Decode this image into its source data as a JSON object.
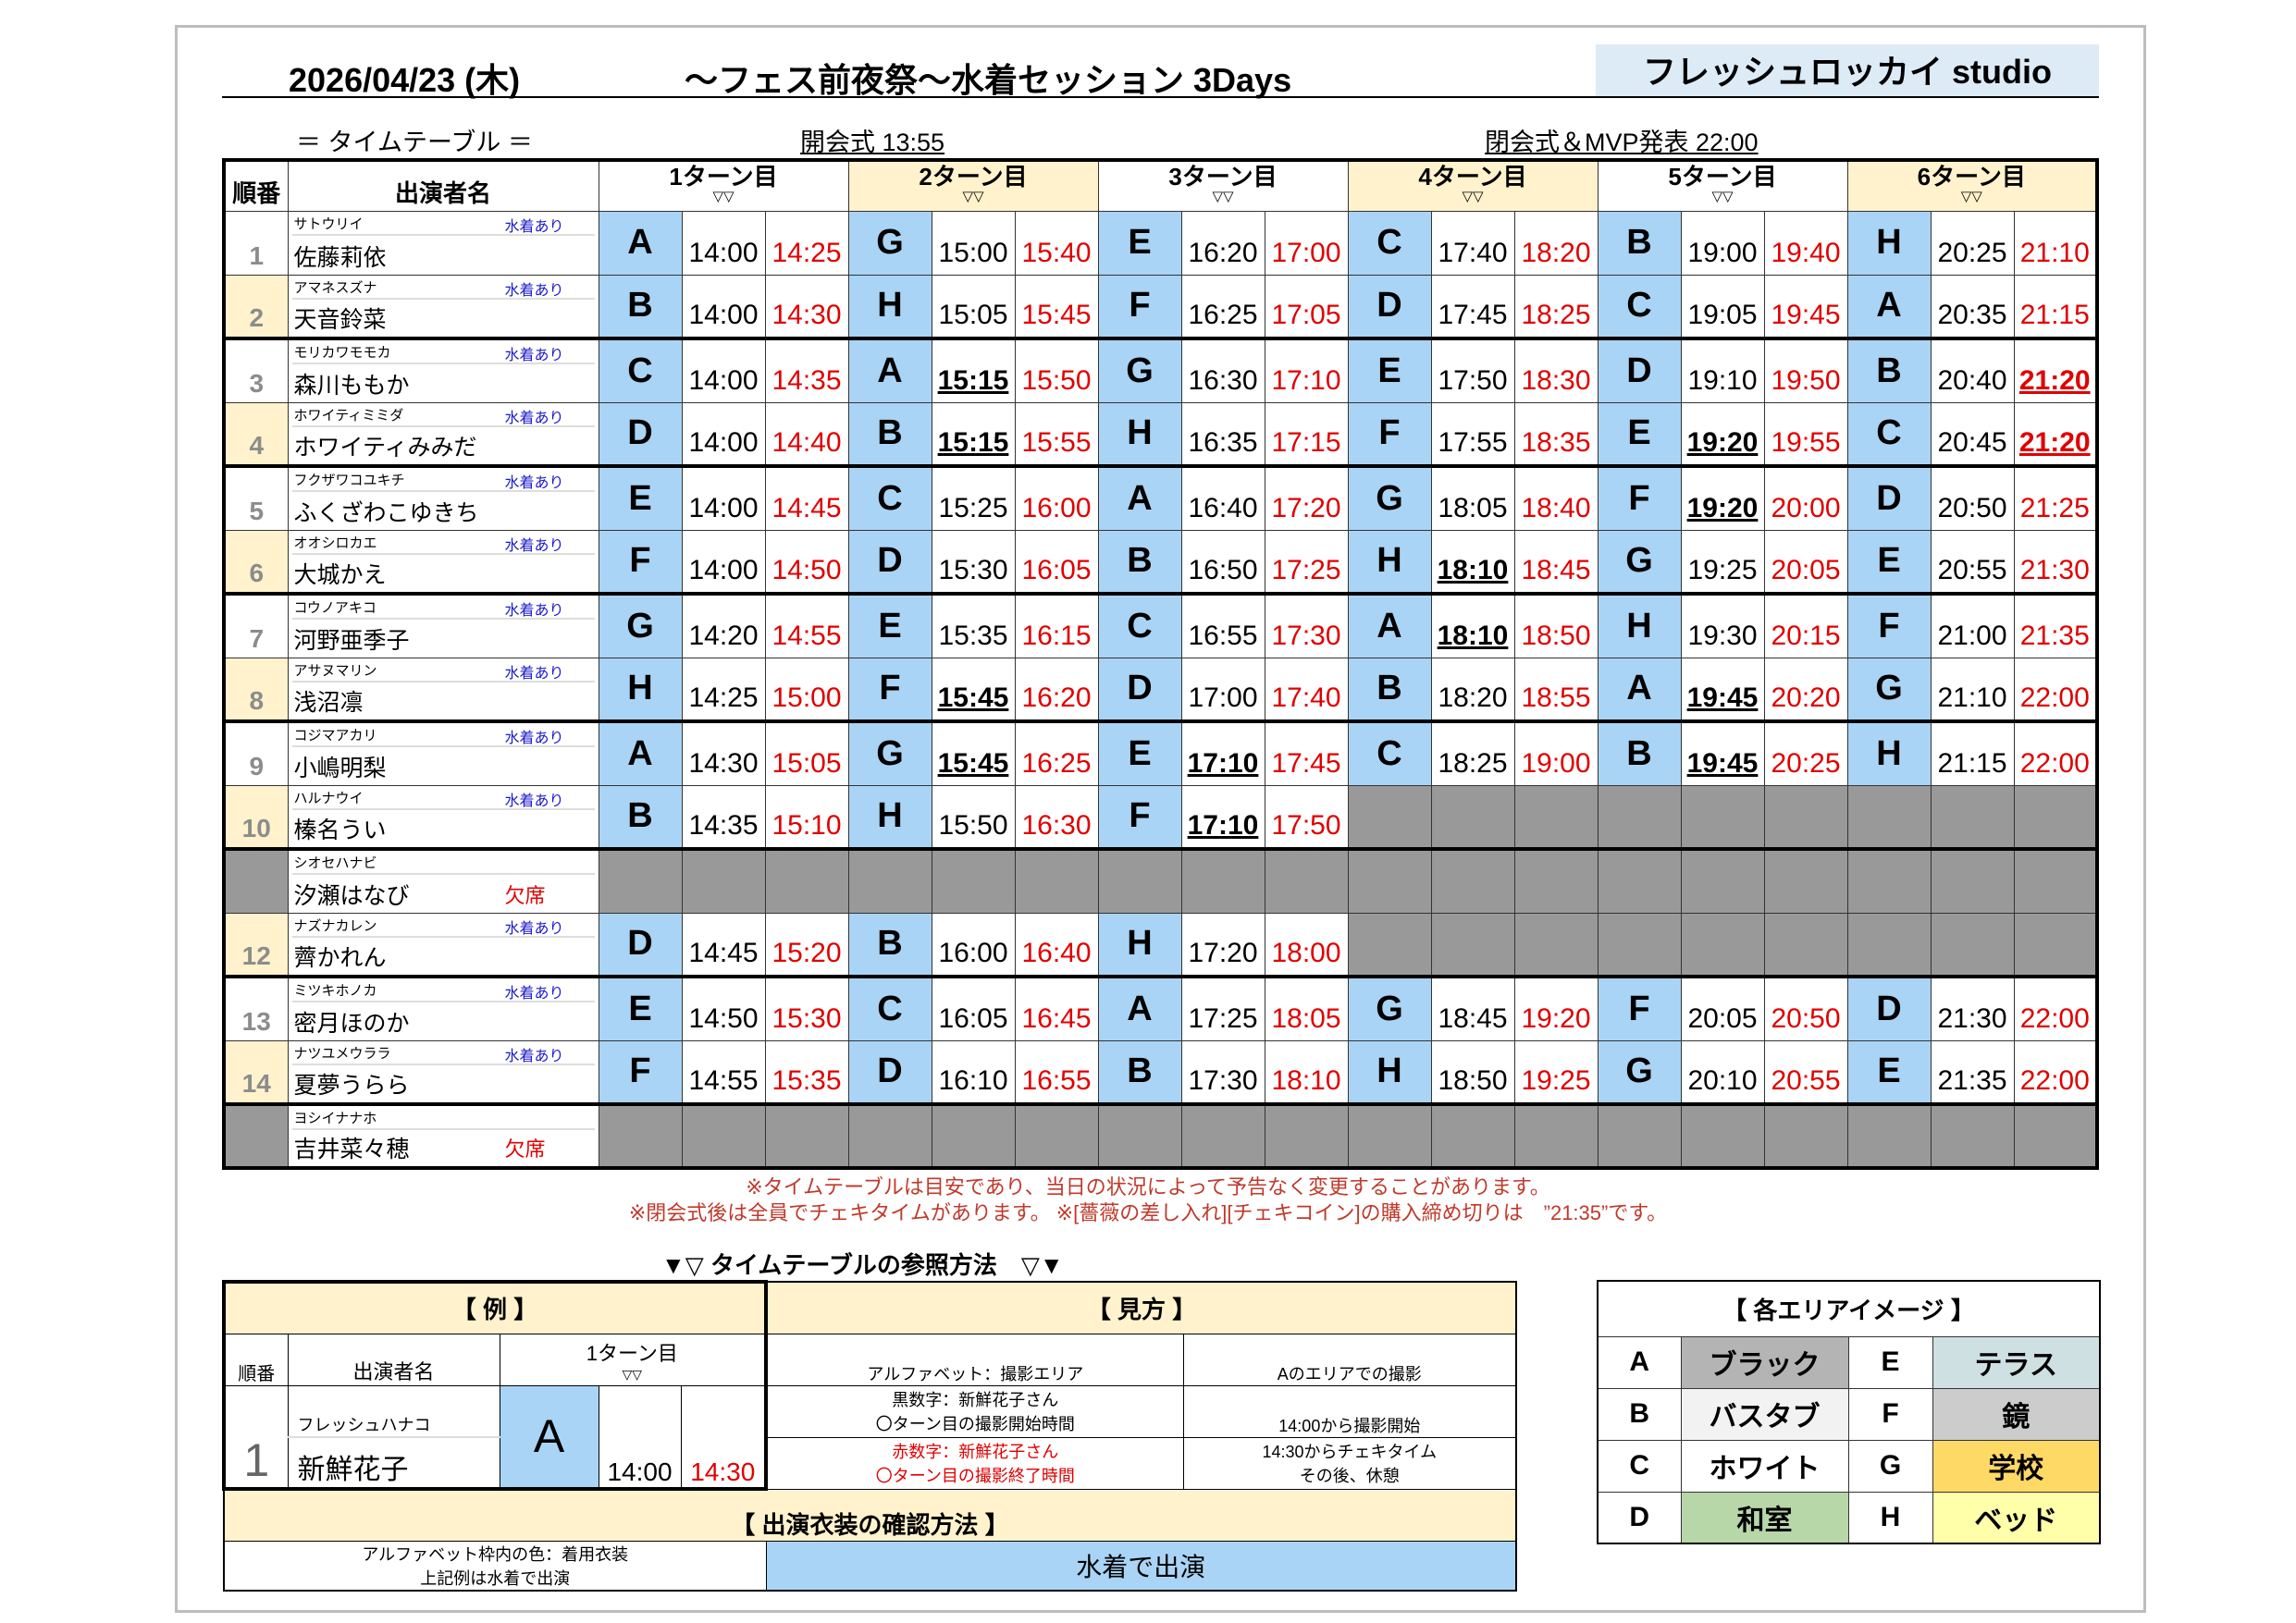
{
  "header": {
    "date": "2026/04/23 (木)",
    "title": "～フェス前夜祭～水着セッション 3Days",
    "studio": "フレッシュロッカイ studio"
  },
  "subheader": {
    "timetable_label": "＝ タイムテーブル ＝",
    "opening": "開会式 13:55",
    "closing": "閉会式＆MVP発表 22:00"
  },
  "table": {
    "col_seq": "順番",
    "col_name": "出演者名",
    "turns": [
      "1ターン目",
      "2ターン目",
      "3ターン目",
      "4ターン目",
      "5ターン目",
      "6ターン目"
    ],
    "turn_arrow": "▽▽",
    "swimsuit_label": "水着あり",
    "absent_label": "欠席",
    "rows": [
      {
        "seq": "1",
        "kana": "サトウリイ",
        "name": "佐藤莉依",
        "swim": true,
        "turns": [
          {
            "area": "A",
            "start": "14:00",
            "end": "14:25"
          },
          {
            "area": "G",
            "start": "15:00",
            "end": "15:40"
          },
          {
            "area": "E",
            "start": "16:20",
            "end": "17:00"
          },
          {
            "area": "C",
            "start": "17:40",
            "end": "18:20"
          },
          {
            "area": "B",
            "start": "19:00",
            "end": "19:40"
          },
          {
            "area": "H",
            "start": "20:25",
            "end": "21:10"
          }
        ]
      },
      {
        "seq": "2",
        "kana": "アマネスズナ",
        "name": "天音鈴菜",
        "swim": true,
        "turns": [
          {
            "area": "B",
            "start": "14:00",
            "end": "14:30"
          },
          {
            "area": "H",
            "start": "15:05",
            "end": "15:45"
          },
          {
            "area": "F",
            "start": "16:25",
            "end": "17:05"
          },
          {
            "area": "D",
            "start": "17:45",
            "end": "18:25"
          },
          {
            "area": "C",
            "start": "19:05",
            "end": "19:45"
          },
          {
            "area": "A",
            "start": "20:35",
            "end": "21:15"
          }
        ]
      },
      {
        "seq": "3",
        "kana": "モリカワモモカ",
        "name": "森川ももか",
        "swim": true,
        "turns": [
          {
            "area": "C",
            "start": "14:00",
            "end": "14:35"
          },
          {
            "area": "A",
            "start": "15:15",
            "end": "15:50",
            "start_bold": true
          },
          {
            "area": "G",
            "start": "16:30",
            "end": "17:10"
          },
          {
            "area": "E",
            "start": "17:50",
            "end": "18:30"
          },
          {
            "area": "D",
            "start": "19:10",
            "end": "19:50"
          },
          {
            "area": "B",
            "start": "20:40",
            "end": "21:20",
            "end_bold": true
          }
        ]
      },
      {
        "seq": "4",
        "kana": "ホワイティミミダ",
        "name": "ホワイティみみだ",
        "swim": true,
        "turns": [
          {
            "area": "D",
            "start": "14:00",
            "end": "14:40"
          },
          {
            "area": "B",
            "start": "15:15",
            "end": "15:55",
            "start_bold": true
          },
          {
            "area": "H",
            "start": "16:35",
            "end": "17:15"
          },
          {
            "area": "F",
            "start": "17:55",
            "end": "18:35"
          },
          {
            "area": "E",
            "start": "19:20",
            "end": "19:55",
            "start_bold": true
          },
          {
            "area": "C",
            "start": "20:45",
            "end": "21:20",
            "end_bold": true
          }
        ]
      },
      {
        "seq": "5",
        "kana": "フクザワコユキチ",
        "name": "ふくざわこゆきち",
        "swim": true,
        "turns": [
          {
            "area": "E",
            "start": "14:00",
            "end": "14:45"
          },
          {
            "area": "C",
            "start": "15:25",
            "end": "16:00"
          },
          {
            "area": "A",
            "start": "16:40",
            "end": "17:20"
          },
          {
            "area": "G",
            "start": "18:05",
            "end": "18:40"
          },
          {
            "area": "F",
            "start": "19:20",
            "end": "20:00",
            "start_bold": true
          },
          {
            "area": "D",
            "start": "20:50",
            "end": "21:25"
          }
        ]
      },
      {
        "seq": "6",
        "kana": "オオシロカエ",
        "name": "大城かえ",
        "swim": true,
        "turns": [
          {
            "area": "F",
            "start": "14:00",
            "end": "14:50"
          },
          {
            "area": "D",
            "start": "15:30",
            "end": "16:05"
          },
          {
            "area": "B",
            "start": "16:50",
            "end": "17:25"
          },
          {
            "area": "H",
            "start": "18:10",
            "end": "18:45",
            "start_bold": true
          },
          {
            "area": "G",
            "start": "19:25",
            "end": "20:05"
          },
          {
            "area": "E",
            "start": "20:55",
            "end": "21:30"
          }
        ]
      },
      {
        "seq": "7",
        "kana": "コウノアキコ",
        "name": "河野亜季子",
        "swim": true,
        "turns": [
          {
            "area": "G",
            "start": "14:20",
            "end": "14:55"
          },
          {
            "area": "E",
            "start": "15:35",
            "end": "16:15"
          },
          {
            "area": "C",
            "start": "16:55",
            "end": "17:30"
          },
          {
            "area": "A",
            "start": "18:10",
            "end": "18:50",
            "start_bold": true
          },
          {
            "area": "H",
            "start": "19:30",
            "end": "20:15"
          },
          {
            "area": "F",
            "start": "21:00",
            "end": "21:35"
          }
        ]
      },
      {
        "seq": "8",
        "kana": "アサヌマリン",
        "name": "浅沼凛",
        "swim": true,
        "turns": [
          {
            "area": "H",
            "start": "14:25",
            "end": "15:00"
          },
          {
            "area": "F",
            "start": "15:45",
            "end": "16:20",
            "start_bold": true
          },
          {
            "area": "D",
            "start": "17:00",
            "end": "17:40"
          },
          {
            "area": "B",
            "start": "18:20",
            "end": "18:55"
          },
          {
            "area": "A",
            "start": "19:45",
            "end": "20:20",
            "start_bold": true
          },
          {
            "area": "G",
            "start": "21:10",
            "end": "22:00"
          }
        ]
      },
      {
        "seq": "9",
        "kana": "コジマアカリ",
        "name": "小嶋明梨",
        "swim": true,
        "turns": [
          {
            "area": "A",
            "start": "14:30",
            "end": "15:05"
          },
          {
            "area": "G",
            "start": "15:45",
            "end": "16:25",
            "start_bold": true
          },
          {
            "area": "E",
            "start": "17:10",
            "end": "17:45",
            "start_bold": true
          },
          {
            "area": "C",
            "start": "18:25",
            "end": "19:00"
          },
          {
            "area": "B",
            "start": "19:45",
            "end": "20:25",
            "start_bold": true
          },
          {
            "area": "H",
            "start": "21:15",
            "end": "22:00"
          }
        ]
      },
      {
        "seq": "10",
        "kana": "ハルナウイ",
        "name": "榛名うい",
        "swim": true,
        "turns": [
          {
            "area": "B",
            "start": "14:35",
            "end": "15:10"
          },
          {
            "area": "H",
            "start": "15:50",
            "end": "16:30"
          },
          {
            "area": "F",
            "start": "17:10",
            "end": "17:50",
            "start_bold": true
          },
          null,
          null,
          null
        ]
      },
      {
        "seq": "",
        "kana": "シオセハナビ",
        "name": "汐瀬はなび",
        "absent": true,
        "turns": [
          null,
          null,
          null,
          null,
          null,
          null
        ]
      },
      {
        "seq": "12",
        "kana": "ナズナカレン",
        "name": "薺かれん",
        "swim": true,
        "turns": [
          {
            "area": "D",
            "start": "14:45",
            "end": "15:20"
          },
          {
            "area": "B",
            "start": "16:00",
            "end": "16:40"
          },
          {
            "area": "H",
            "start": "17:20",
            "end": "18:00"
          },
          null,
          null,
          null
        ]
      },
      {
        "seq": "13",
        "kana": "ミツキホノカ",
        "name": "密月ほのか",
        "swim": true,
        "turns": [
          {
            "area": "E",
            "start": "14:50",
            "end": "15:30"
          },
          {
            "area": "C",
            "start": "16:05",
            "end": "16:45"
          },
          {
            "area": "A",
            "start": "17:25",
            "end": "18:05"
          },
          {
            "area": "G",
            "start": "18:45",
            "end": "19:20"
          },
          {
            "area": "F",
            "start": "20:05",
            "end": "20:50"
          },
          {
            "area": "D",
            "start": "21:30",
            "end": "22:00"
          }
        ]
      },
      {
        "seq": "14",
        "kana": "ナツユメウララ",
        "name": "夏夢うらら",
        "swim": true,
        "turns": [
          {
            "area": "F",
            "start": "14:55",
            "end": "15:35"
          },
          {
            "area": "D",
            "start": "16:10",
            "end": "16:55"
          },
          {
            "area": "B",
            "start": "17:30",
            "end": "18:10"
          },
          {
            "area": "H",
            "start": "18:50",
            "end": "19:25"
          },
          {
            "area": "G",
            "start": "20:10",
            "end": "20:55"
          },
          {
            "area": "E",
            "start": "21:35",
            "end": "22:00"
          }
        ]
      },
      {
        "seq": "",
        "kana": "ヨシイナナホ",
        "name": "吉井菜々穂",
        "absent": true,
        "turns": [
          null,
          null,
          null,
          null,
          null,
          null
        ]
      }
    ]
  },
  "notes": [
    "※タイムテーブルは目安であり、当日の状況によって予告なく変更することがあります。",
    "※閉会式後は全員でチェキタイムがあります。 ※[薔薇の差し入れ][チェキコイン]の購入締め切りは　”21:35”です。"
  ],
  "reference": {
    "title": "▼▽ タイムテーブルの参照方法　▽▼",
    "example_header": "【 例 】",
    "howto_header": "【 見方 】",
    "col_seq": "順番",
    "col_name": "出演者名",
    "col_turn": "1ターン目",
    "turn_arrow": "▽▽",
    "ex_seq": "1",
    "ex_kana": "フレッシュハナコ",
    "ex_name": "新鮮花子",
    "ex_area": "A",
    "ex_start": "14:00",
    "ex_end": "14:30",
    "howto_area_label": "アルファベット：撮影エリア",
    "howto_area_desc": "Aのエリアでの撮影",
    "howto_black_label_1": "黒数字：新鮮花子さん",
    "howto_black_label_2": "〇ターン目の撮影開始時間",
    "howto_black_desc": "14:00から撮影開始",
    "howto_red_label_1": "赤数字：新鮮花子さん",
    "howto_red_label_2": "〇ターン目の撮影終了時間",
    "howto_red_desc_1": "14:30からチェキタイム",
    "howto_red_desc_2": "その後、休憩",
    "costume_header": "【 出演衣装の確認方法 】",
    "costume_desc_1": "アルファベット枠内の色：着用衣装",
    "costume_desc_2": "上記例は水着で出演",
    "costume_value": "水着で出演"
  },
  "areas": {
    "title": "【 各エリアイメージ 】",
    "items": [
      {
        "letter": "A",
        "name": "ブラック",
        "color": "#b4b4b4"
      },
      {
        "letter": "B",
        "name": "バスタブ",
        "color": "#f2f2f2"
      },
      {
        "letter": "C",
        "name": "ホワイト",
        "color": "#ffffff"
      },
      {
        "letter": "D",
        "name": "和室",
        "color": "#b7d7a8"
      },
      {
        "letter": "E",
        "name": "テラス",
        "color": "#cfe0e3"
      },
      {
        "letter": "F",
        "name": "鏡",
        "color": "#cccccc"
      },
      {
        "letter": "G",
        "name": "学校",
        "color": "#ffd966"
      },
      {
        "letter": "H",
        "name": "ベッド",
        "color": "#ffffaa"
      }
    ]
  },
  "colors": {
    "area_cell": "#a9d4f5",
    "cream": "#fff2cc",
    "unavailable": "#999999",
    "end_time": "#e00000",
    "swimsuit_text": "#1a1acc"
  }
}
